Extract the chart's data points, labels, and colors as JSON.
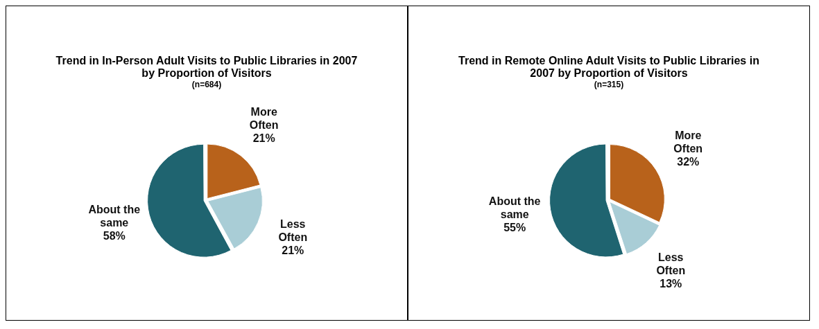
{
  "chart_data": [
    {
      "type": "pie",
      "title": "Trend in In-Person Adult Visits to Public Libraries in 2007 by Proportion of Visitors",
      "subtitle": "(n=684)",
      "categories": [
        "More Often",
        "Less Often",
        "About the same"
      ],
      "values": [
        21,
        21,
        58
      ],
      "value_labels": [
        "21%",
        "21%",
        "58%"
      ],
      "colors": [
        "#b8621b",
        "#a9cdd6",
        "#1f6470"
      ]
    },
    {
      "type": "pie",
      "title": "Trend in Remote Online Adult Visits to Public Libraries in 2007 by Proportion of Visitors",
      "subtitle": "(n=315)",
      "categories": [
        "More Often",
        "Less Often",
        "About the same"
      ],
      "values": [
        32,
        13,
        55
      ],
      "value_labels": [
        "32%",
        "13%",
        "55%"
      ],
      "colors": [
        "#b8621b",
        "#a9cdd6",
        "#1f6470"
      ]
    }
  ]
}
